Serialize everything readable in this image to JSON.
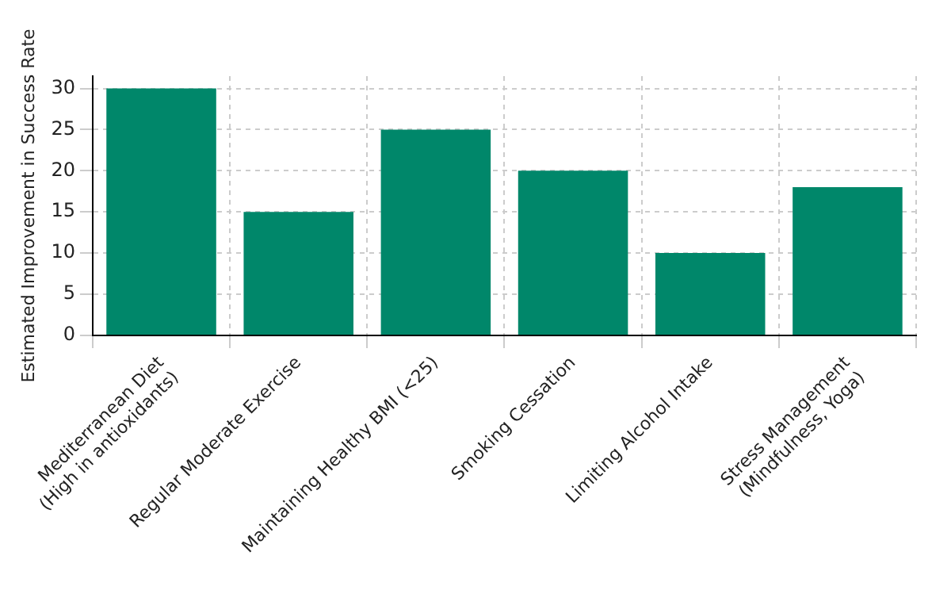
{
  "chart_data": {
    "type": "bar",
    "ylabel": "Estimated Improvement in Success Rate",
    "categories": [
      "Mediterranean Diet\n(High in antioxidants)",
      "Regular Moderate Exercise",
      "Maintaining Healthy BMI (<25)",
      "Smoking Cessation",
      "Limiting Alcohol Intake",
      "Stress Management\n(Mindfulness, Yoga)"
    ],
    "values": [
      30,
      15,
      25,
      20,
      10,
      18
    ],
    "color": "#00876a",
    "ylim": [
      0,
      31.5
    ],
    "yticks": [
      0,
      5,
      10,
      15,
      20,
      25,
      30
    ],
    "grid": true
  }
}
